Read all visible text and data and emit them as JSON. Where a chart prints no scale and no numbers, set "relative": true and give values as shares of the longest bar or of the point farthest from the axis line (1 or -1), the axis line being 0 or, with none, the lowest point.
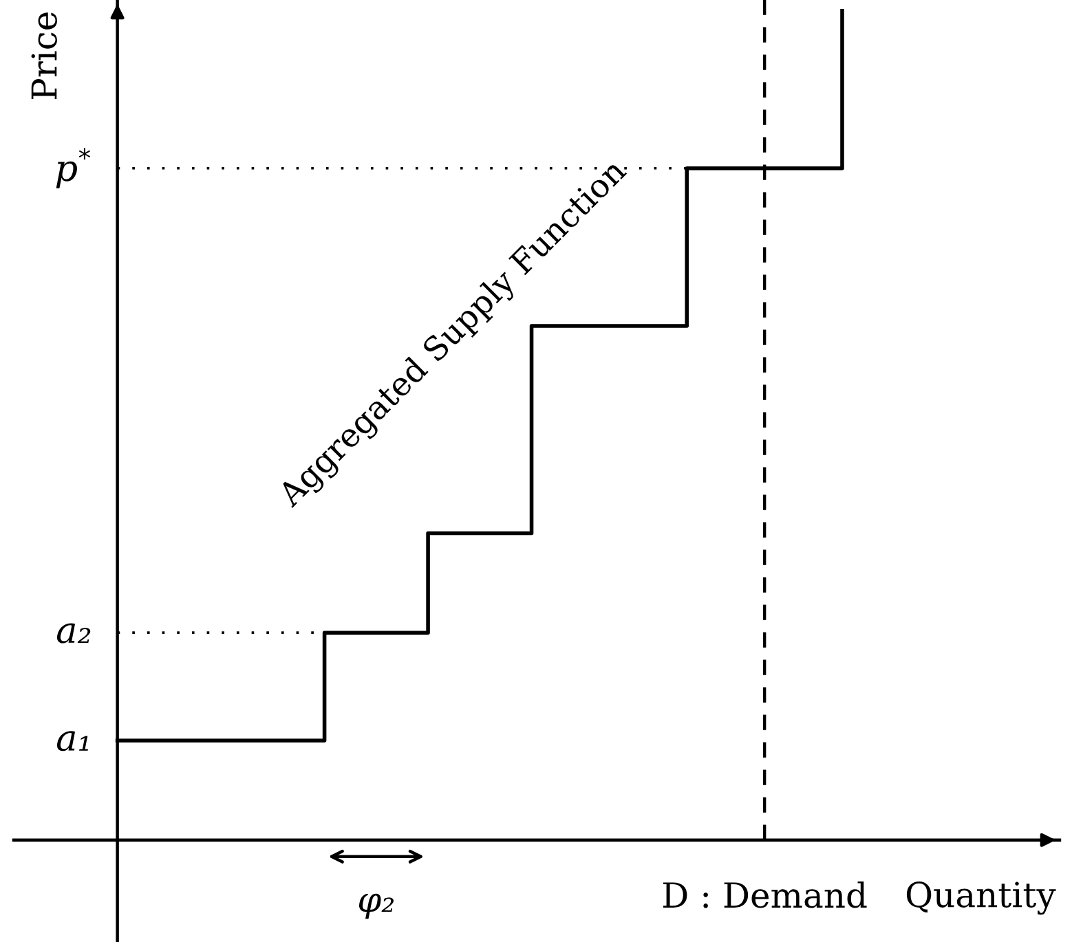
{
  "chart_data": {
    "type": "step",
    "relative": true,
    "xlabel": "Quantity",
    "ylabel": "Price",
    "categories": [
      null,
      null,
      null,
      null,
      null,
      null,
      null,
      null,
      null,
      null,
      null,
      null,
      null,
      null,
      null
    ],
    "series": [
      {
        "name": "Aggregated Supply Function",
        "color": "#000000",
        "values": [
          0.12,
          0.12,
          0.12,
          0.12,
          0.25,
          0.25,
          0.37,
          0.37,
          0.62,
          0.62,
          0.62,
          0.81,
          0.81,
          0.81,
          1.0
        ]
      }
    ],
    "ref_lines": [
      {
        "axis": "y",
        "value": 0.25,
        "label": "a₂",
        "line_style": "dotted"
      },
      {
        "axis": "y",
        "value": 0.81,
        "label": "p$^{*}$",
        "line_style": "dotted"
      }
    ],
    "annotations": [
      "a₁",
      "φ₂",
      "D : Demand"
    ],
    "legend": false,
    "marker": "none",
    "line_style": "solid"
  }
}
